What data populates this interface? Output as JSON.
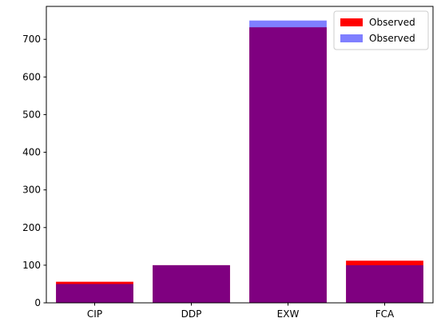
{
  "chart_data": {
    "type": "bar",
    "categories": [
      "CIP",
      "DDP",
      "EXW",
      "FCA"
    ],
    "series": [
      {
        "name": "Observed",
        "values": [
          56,
          100,
          732,
          112
        ],
        "color": "#ff0000",
        "alpha": 1.0
      },
      {
        "name": "Observed",
        "values": [
          50,
          100,
          750,
          100
        ],
        "color": "#0000ff",
        "alpha": 0.5
      }
    ],
    "title": "",
    "xlabel": "",
    "ylabel": "",
    "ylim": [
      0,
      787.5
    ],
    "yticks": [
      0,
      100,
      200,
      300,
      400,
      500,
      600,
      700
    ],
    "grid": false,
    "legend_position": "upper right"
  }
}
